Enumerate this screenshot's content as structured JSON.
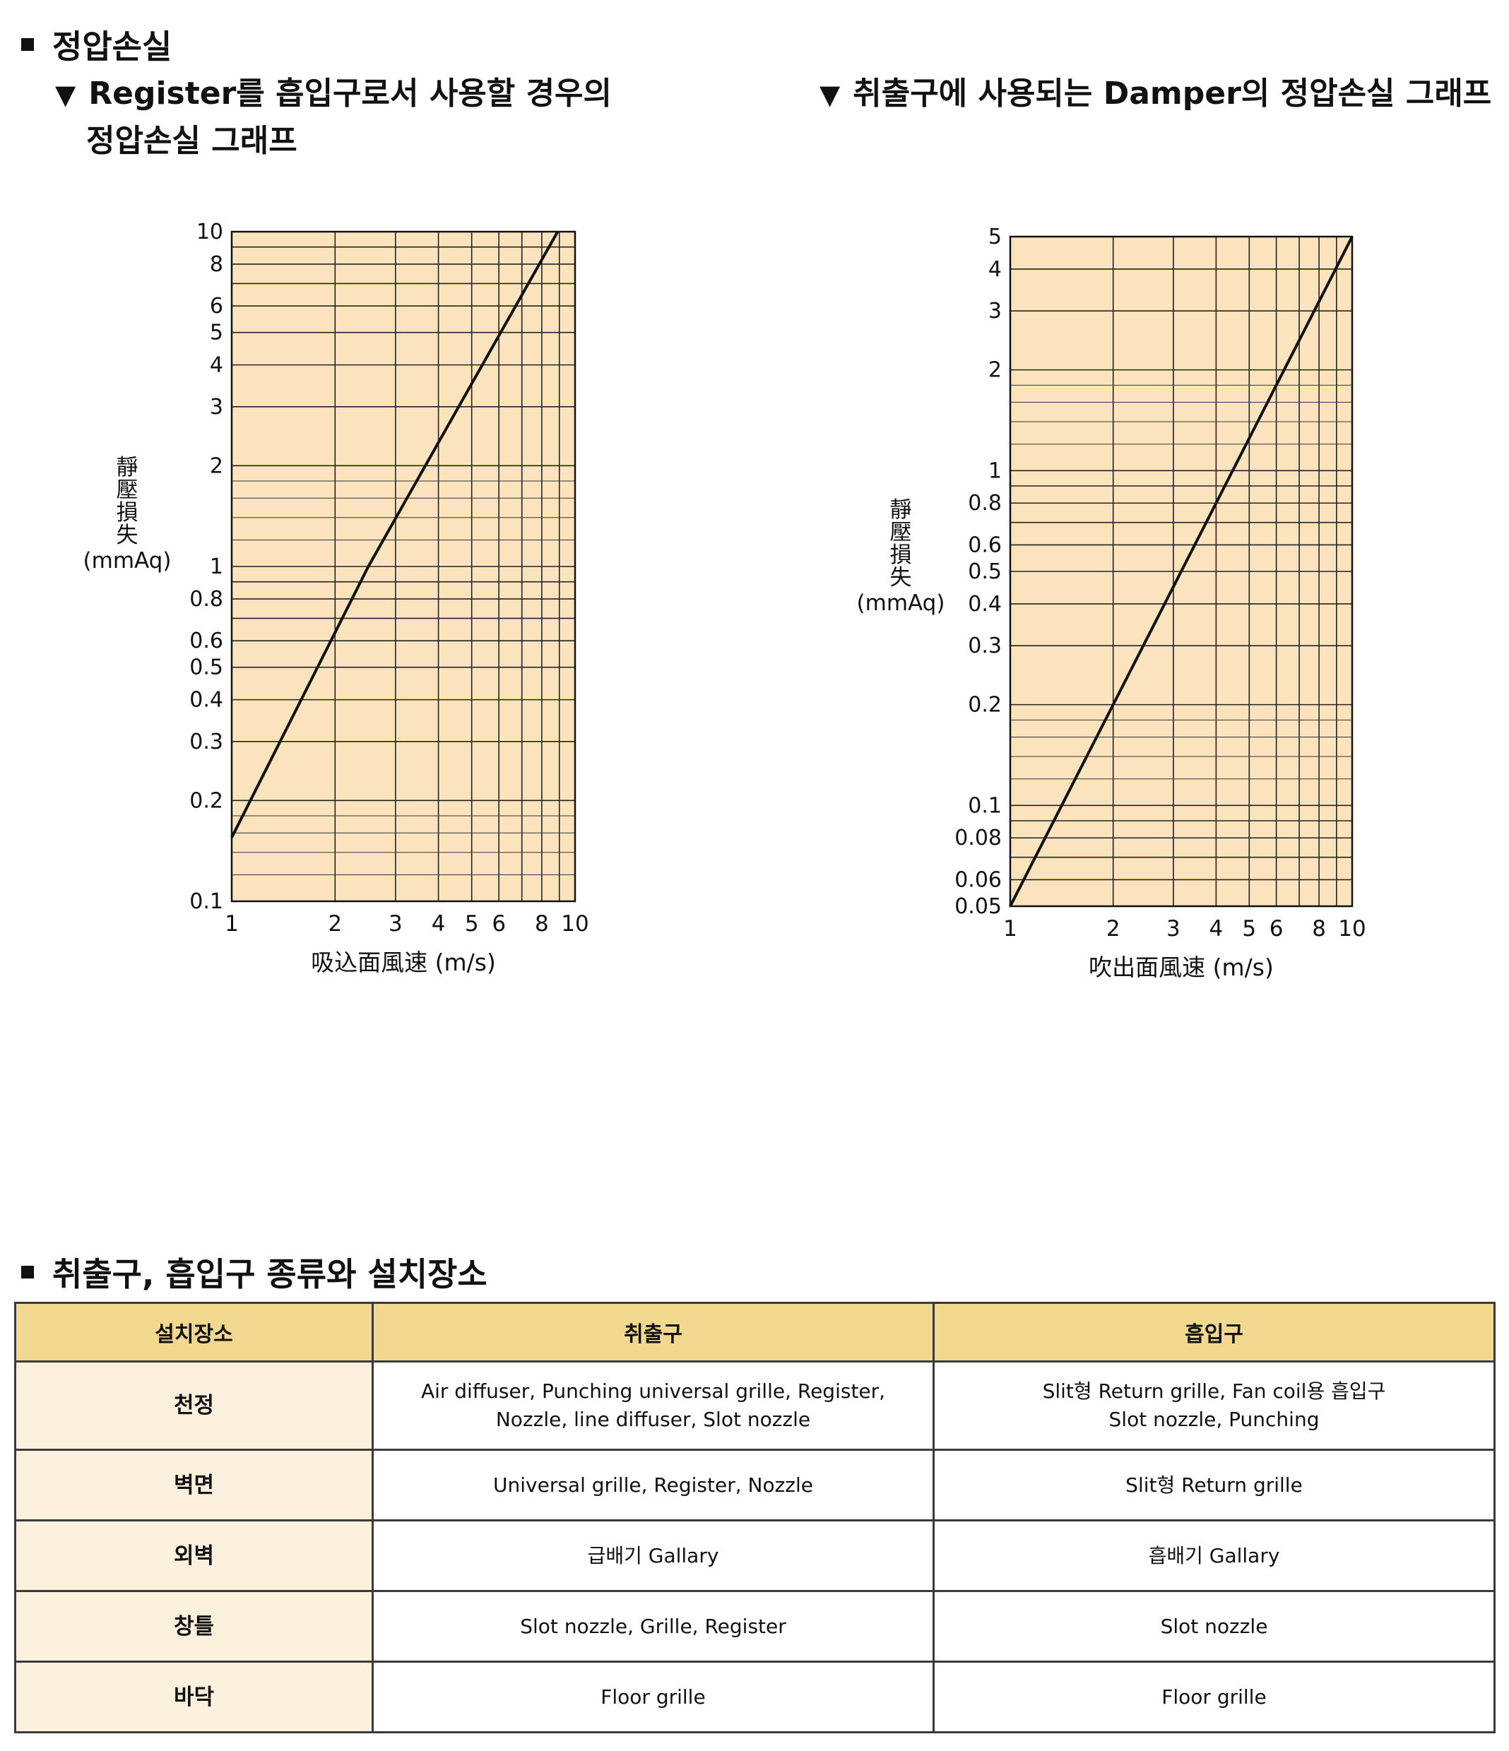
{
  "section1": {
    "title": "정압손실",
    "left_subtitle_line1": "Register를 흡입구로서 사용할 경우의",
    "left_subtitle_line2": "정압손실 그래프",
    "right_subtitle": "취출구에 사용되는 Damper의  정압손실 그래프",
    "triangle_glyph": "▼"
  },
  "chart_data": [
    {
      "type": "line",
      "title": "",
      "xlabel": "吸込面風速 (m/s)",
      "ylabel_chars": [
        "靜",
        "壓",
        "損",
        "失"
      ],
      "ylabel_unit": "(mmAq)",
      "xscale": "log",
      "yscale": "log",
      "xlim": [
        1,
        10
      ],
      "ylim": [
        0.1,
        10
      ],
      "x_ticks": [
        "1",
        "2",
        "3",
        "4",
        "5",
        "6",
        "8",
        "10"
      ],
      "x_tick_values": [
        1,
        2,
        3,
        4,
        5,
        6,
        8,
        10
      ],
      "y_ticks": [
        "0.1",
        "0.2",
        "0.3",
        "0.4",
        "0.5",
        "0.6",
        "0.8",
        "1",
        "2",
        "3",
        "4",
        "5",
        "6",
        "8",
        "10"
      ],
      "y_tick_values": [
        0.1,
        0.2,
        0.3,
        0.4,
        0.5,
        0.6,
        0.8,
        1,
        2,
        3,
        4,
        5,
        6,
        8,
        10
      ],
      "series": [
        {
          "x": [
            1,
            2.5,
            8.9
          ],
          "y": [
            0.155,
            1.0,
            10
          ]
        }
      ],
      "grid": true,
      "background": "#fbe4bd",
      "line_color": "#111111"
    },
    {
      "type": "line",
      "title": "",
      "xlabel": "吹出面風速 (m/s)",
      "ylabel_chars": [
        "靜",
        "壓",
        "損",
        "失"
      ],
      "ylabel_unit": "(mmAq)",
      "xscale": "log",
      "yscale": "log",
      "xlim": [
        1,
        10
      ],
      "ylim": [
        0.05,
        5
      ],
      "x_ticks": [
        "1",
        "2",
        "3",
        "4",
        "5",
        "6",
        "8",
        "10"
      ],
      "x_tick_values": [
        1,
        2,
        3,
        4,
        5,
        6,
        8,
        10
      ],
      "y_ticks": [
        "0.05",
        "0.06",
        "0.08",
        "0.1",
        "0.2",
        "0.3",
        "0.4",
        "0.5",
        "0.6",
        "0.8",
        "1",
        "2",
        "3",
        "4",
        "5"
      ],
      "y_tick_values": [
        0.05,
        0.06,
        0.08,
        0.1,
        0.2,
        0.3,
        0.4,
        0.5,
        0.6,
        0.8,
        1,
        2,
        3,
        4,
        5
      ],
      "series": [
        {
          "x": [
            1,
            2,
            3,
            10
          ],
          "y": [
            0.05,
            0.2,
            0.45,
            5
          ]
        }
      ],
      "grid": true,
      "background": "#fbe4bd",
      "line_color": "#111111"
    }
  ],
  "section2": {
    "title": "취출구, 흡입구 종류와 설치장소",
    "headers": [
      "설치장소",
      "취출구",
      "흡입구"
    ],
    "rows": [
      {
        "place": "천정",
        "outlet": [
          "Air diffuser, Punching universal grille, Register,",
          "Nozzle, line diffuser, Slot nozzle"
        ],
        "inlet": [
          "Slit형 Return grille, Fan coil용 흡입구",
          "Slot nozzle, Punching"
        ]
      },
      {
        "place": "벽면",
        "outlet": [
          "Universal grille, Register, Nozzle"
        ],
        "inlet": [
          "Slit형 Return grille"
        ]
      },
      {
        "place": "외벽",
        "outlet": [
          "급배기 Gallary"
        ],
        "inlet": [
          "흡배기 Gallary"
        ]
      },
      {
        "place": "창틀",
        "outlet": [
          "Slot nozzle, Grille, Register"
        ],
        "inlet": [
          "Slot nozzle"
        ]
      },
      {
        "place": "바닥",
        "outlet": [
          "Floor grille"
        ],
        "inlet": [
          "Floor grille"
        ]
      }
    ]
  }
}
